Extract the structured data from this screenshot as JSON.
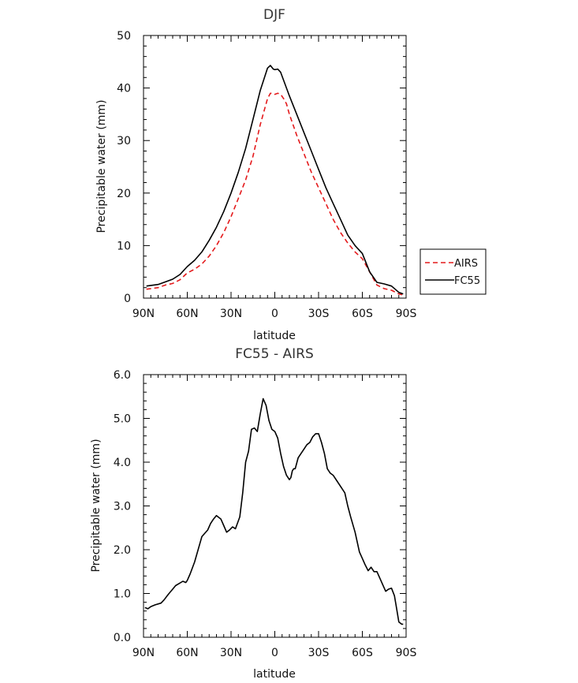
{
  "chart_data": [
    {
      "type": "line",
      "title": "DJF",
      "xlabel": "latitude",
      "ylabel": "Precipitable water (mm)",
      "xlim": [
        -90,
        90
      ],
      "ylim": [
        0,
        50
      ],
      "xticks": [
        -90,
        -60,
        -30,
        0,
        30,
        60,
        90
      ],
      "xtick_labels": [
        "90N",
        "60N",
        "30N",
        "0",
        "30S",
        "60S",
        "90S"
      ],
      "yticks": [
        0,
        10,
        20,
        30,
        40,
        50
      ],
      "ytick_labels": [
        "0",
        "10",
        "20",
        "30",
        "40",
        "50"
      ],
      "legend": {
        "placement": "right",
        "entries": [
          "AIRS",
          "FC55"
        ]
      },
      "series": [
        {
          "name": "AIRS",
          "color": "#e41a1c",
          "dash": "dashed",
          "x": [
            -88,
            -80,
            -75,
            -70,
            -65,
            -60,
            -55,
            -50,
            -45,
            -40,
            -35,
            -30,
            -25,
            -20,
            -15,
            -10,
            -5,
            -3,
            -1,
            0,
            2,
            4,
            6,
            8,
            10,
            15,
            20,
            25,
            30,
            35,
            40,
            45,
            50,
            55,
            60,
            65,
            70,
            75,
            80,
            85,
            88
          ],
          "y": [
            1.7,
            2.0,
            2.5,
            2.8,
            3.5,
            4.8,
            5.5,
            6.5,
            8.0,
            10.0,
            12.5,
            15.5,
            19.0,
            22.5,
            27.0,
            33.0,
            38.0,
            39.0,
            39.0,
            38.8,
            39.0,
            38.8,
            38.0,
            37.0,
            35.0,
            31.0,
            27.5,
            24.0,
            21.0,
            18.0,
            15.0,
            12.5,
            10.5,
            8.8,
            7.5,
            5.0,
            2.5,
            1.8,
            1.5,
            0.8,
            0.6
          ]
        },
        {
          "name": "FC55",
          "color": "#000000",
          "dash": "solid",
          "x": [
            -88,
            -80,
            -75,
            -70,
            -65,
            -60,
            -55,
            -50,
            -45,
            -40,
            -35,
            -30,
            -25,
            -20,
            -15,
            -10,
            -5,
            -3,
            -1,
            0,
            2,
            4,
            6,
            8,
            10,
            15,
            20,
            25,
            30,
            35,
            40,
            45,
            50,
            55,
            60,
            65,
            70,
            75,
            80,
            85,
            88
          ],
          "y": [
            2.3,
            2.6,
            3.1,
            3.6,
            4.5,
            6.0,
            7.2,
            8.8,
            11.0,
            13.5,
            16.5,
            20.0,
            24.0,
            28.5,
            34.0,
            39.5,
            43.8,
            44.3,
            43.6,
            43.5,
            43.6,
            43.0,
            41.5,
            40.0,
            38.5,
            35.0,
            31.5,
            28.0,
            24.5,
            21.0,
            18.0,
            15.0,
            12.0,
            10.0,
            8.5,
            5.0,
            3.0,
            2.7,
            2.3,
            1.1,
            0.8
          ]
        }
      ]
    },
    {
      "type": "line",
      "title": "FC55 - AIRS",
      "xlabel": "latitude",
      "ylabel": "Precipitable water (mm)",
      "xlim": [
        -90,
        90
      ],
      "ylim": [
        0,
        6
      ],
      "xticks": [
        -90,
        -60,
        -30,
        0,
        30,
        60,
        90
      ],
      "xtick_labels": [
        "90N",
        "60N",
        "30N",
        "0",
        "30S",
        "60S",
        "90S"
      ],
      "yticks": [
        0,
        1,
        2,
        3,
        4,
        5,
        6
      ],
      "ytick_labels": [
        "0.0",
        "1.0",
        "2.0",
        "3.0",
        "4.0",
        "5.0",
        "6.0"
      ],
      "series": [
        {
          "color": "#000000",
          "dash": "solid",
          "x": [
            -89,
            -87,
            -85,
            -82,
            -78,
            -76,
            -73,
            -70,
            -68,
            -66,
            -63,
            -61,
            -60,
            -58,
            -55,
            -50,
            -46,
            -44,
            -42,
            -40,
            -37,
            -35,
            -33,
            -31,
            -29,
            -27,
            -24,
            -22,
            -20,
            -18,
            -16,
            -14,
            -12,
            -10,
            -8,
            -6,
            -4,
            -2,
            0,
            2,
            4,
            6,
            8,
            10,
            11,
            12,
            13,
            14,
            16,
            18,
            20,
            22,
            24,
            26,
            28,
            30,
            32,
            34,
            36,
            38,
            40,
            43,
            46,
            48,
            50,
            52,
            55,
            58,
            60,
            62,
            64,
            66,
            68,
            70,
            72,
            74,
            76,
            78,
            80,
            82,
            83,
            85,
            87,
            88
          ],
          "y": [
            0.68,
            0.65,
            0.7,
            0.74,
            0.78,
            0.85,
            0.98,
            1.1,
            1.18,
            1.22,
            1.28,
            1.25,
            1.3,
            1.45,
            1.72,
            2.3,
            2.45,
            2.6,
            2.7,
            2.78,
            2.7,
            2.55,
            2.4,
            2.45,
            2.52,
            2.48,
            2.75,
            3.3,
            4.0,
            4.25,
            4.75,
            4.78,
            4.7,
            5.1,
            5.45,
            5.3,
            4.95,
            4.75,
            4.7,
            4.55,
            4.2,
            3.9,
            3.7,
            3.6,
            3.65,
            3.8,
            3.85,
            3.85,
            4.1,
            4.2,
            4.3,
            4.4,
            4.45,
            4.58,
            4.65,
            4.65,
            4.45,
            4.2,
            3.85,
            3.75,
            3.7,
            3.55,
            3.4,
            3.3,
            3.0,
            2.75,
            2.4,
            1.95,
            1.8,
            1.65,
            1.52,
            1.6,
            1.5,
            1.5,
            1.35,
            1.2,
            1.05,
            1.1,
            1.12,
            0.95,
            0.75,
            0.35,
            0.3,
            0.3
          ]
        }
      ]
    }
  ]
}
